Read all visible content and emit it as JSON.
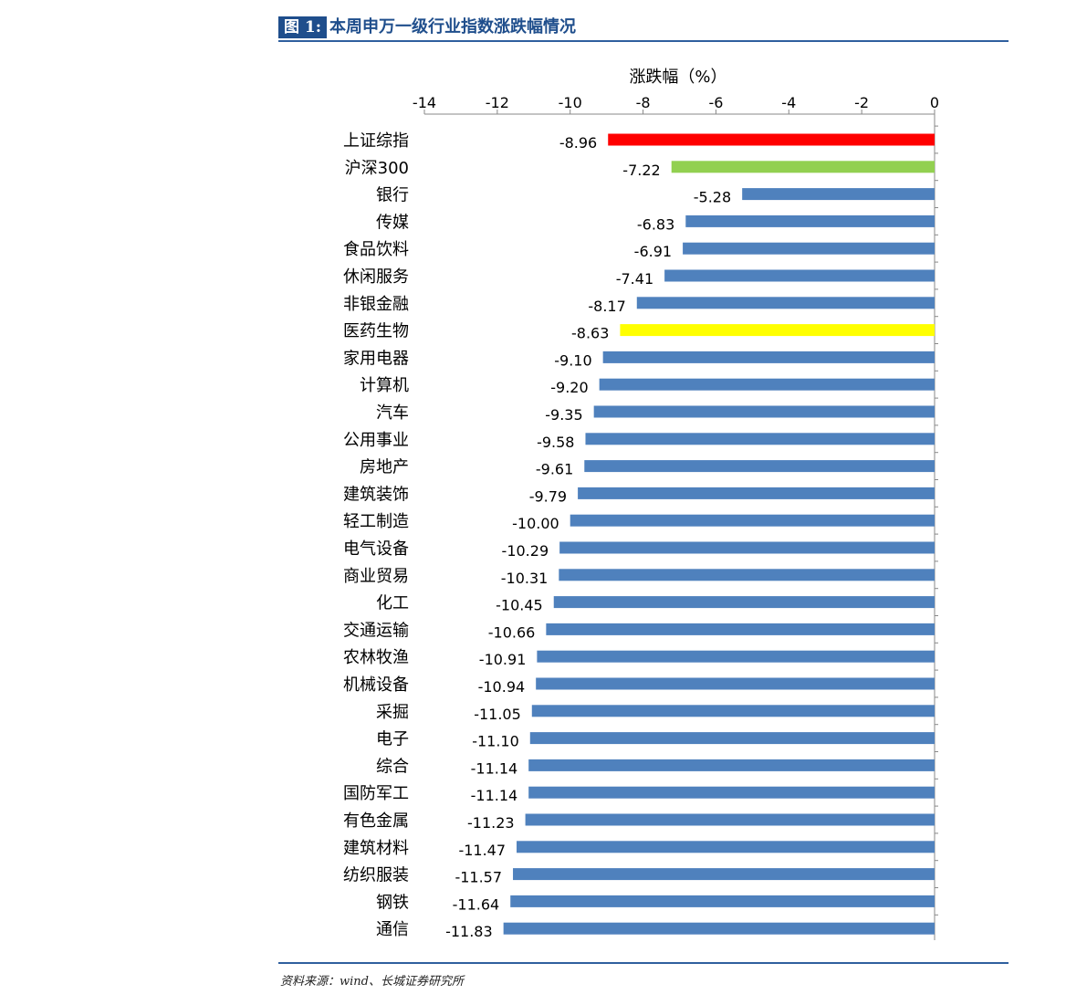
{
  "figure": {
    "label": "图 1:",
    "title": "本周申万一级行业指数涨跌幅情况"
  },
  "source": "资料来源：wind、长城证券研究所",
  "colors": {
    "default_bar": "#4f81bd",
    "highlight_red": "#ff0000",
    "highlight_green": "#92d050",
    "highlight_yellow": "#ffff00",
    "header": "#1f4e8c"
  },
  "chart_data": {
    "type": "bar",
    "orientation": "horizontal",
    "xlabel": "涨跌幅（%）",
    "xlim": [
      -14,
      0
    ],
    "xticks": [
      "-14",
      "-12",
      "-10",
      "-8",
      "-6",
      "-4",
      "-2",
      "0"
    ],
    "xaxis_position": "top",
    "grid": false,
    "legend": "none",
    "categories": [
      "上证综指",
      "沪深300",
      "银行",
      "传媒",
      "食品饮料",
      "休闲服务",
      "非银金融",
      "医药生物",
      "家用电器",
      "计算机",
      "汽车",
      "公用事业",
      "房地产",
      "建筑装饰",
      "轻工制造",
      "电气设备",
      "商业贸易",
      "化工",
      "交通运输",
      "农林牧渔",
      "机械设备",
      "采掘",
      "电子",
      "综合",
      "国防军工",
      "有色金属",
      "建筑材料",
      "纺织服装",
      "钢铁",
      "通信"
    ],
    "values": [
      -8.96,
      -7.22,
      -5.28,
      -6.83,
      -6.91,
      -7.41,
      -8.17,
      -8.63,
      -9.1,
      -9.2,
      -9.35,
      -9.58,
      -9.61,
      -9.79,
      -10.0,
      -10.29,
      -10.31,
      -10.45,
      -10.66,
      -10.91,
      -10.94,
      -11.05,
      -11.1,
      -11.14,
      -11.14,
      -11.23,
      -11.47,
      -11.57,
      -11.64,
      -11.83
    ],
    "data_labels": [
      "-8.96",
      "-7.22",
      "-5.28",
      "-6.83",
      "-6.91",
      "-7.41",
      "-8.17",
      "-8.63",
      "-9.10",
      "-9.20",
      "-9.35",
      "-9.58",
      "-9.61",
      "-9.79",
      "-10.00",
      "-10.29",
      "-10.31",
      "-10.45",
      "-10.66",
      "-10.91",
      "-10.94",
      "-11.05",
      "-11.10",
      "-11.14",
      "-11.14",
      "-11.23",
      "-11.47",
      "-11.57",
      "-11.64",
      "-11.83"
    ],
    "bar_colors": [
      "#ff0000",
      "#92d050",
      "#4f81bd",
      "#4f81bd",
      "#4f81bd",
      "#4f81bd",
      "#4f81bd",
      "#ffff00",
      "#4f81bd",
      "#4f81bd",
      "#4f81bd",
      "#4f81bd",
      "#4f81bd",
      "#4f81bd",
      "#4f81bd",
      "#4f81bd",
      "#4f81bd",
      "#4f81bd",
      "#4f81bd",
      "#4f81bd",
      "#4f81bd",
      "#4f81bd",
      "#4f81bd",
      "#4f81bd",
      "#4f81bd",
      "#4f81bd",
      "#4f81bd",
      "#4f81bd",
      "#4f81bd",
      "#4f81bd"
    ]
  }
}
